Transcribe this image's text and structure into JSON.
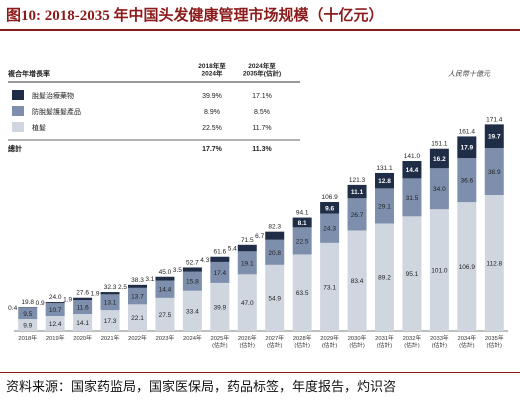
{
  "figure": {
    "title": "图10:   2018-2035 年中国头发健康管理市场规模（十亿元）",
    "source": "资料来源：国家药监局，国家医保局，药品标签，年度报告，灼识咨"
  },
  "colors": {
    "hair_loss_drug": "#1f2d46",
    "anti_hair_loss": "#7d8fac",
    "hair_transplant": "#cfd6e0",
    "title_red": "#8b1a1a"
  },
  "chart_data": {
    "type": "bar",
    "stacked": true,
    "unit_label": "人民幣十億元",
    "categories": [
      "2018年",
      "2019年",
      "2020年",
      "2021年",
      "2022年",
      "2023年",
      "2024年",
      "2025年\n(估計)",
      "2026年\n(估計)",
      "2027年\n(估計)",
      "2028年\n(估計)",
      "2029年\n(估計)",
      "2030年\n(估計)",
      "2031年\n(估計)",
      "2032年\n(估計)",
      "2033年\n(估計)",
      "2034年\n(估計)",
      "2035年\n(估計)"
    ],
    "series": [
      {
        "name": "植髮",
        "color_key": "hair_transplant",
        "values": [
          9.9,
          12.4,
          14.1,
          17.3,
          22.1,
          27.5,
          33.4,
          39.9,
          47.0,
          54.9,
          63.5,
          73.1,
          83.4,
          89.2,
          95.1,
          101.0,
          106.9,
          112.8
        ]
      },
      {
        "name": "防脫髮護髮產品",
        "color_key": "anti_hair_loss",
        "values": [
          9.5,
          10.7,
          11.6,
          13.1,
          13.7,
          14.4,
          15.8,
          17.4,
          19.1,
          20.8,
          22.5,
          24.3,
          26.7,
          29.1,
          31.5,
          34.0,
          36.6,
          38.9
        ]
      },
      {
        "name": "脫髮治療藥物",
        "color_key": "hair_loss_drug",
        "values": [
          0.4,
          0.9,
          1.9,
          1.9,
          2.5,
          3.1,
          3.5,
          4.3,
          5.4,
          6.7,
          8.1,
          9.6,
          11.1,
          12.8,
          14.4,
          16.2,
          17.9,
          19.7
        ]
      }
    ],
    "totals": [
      19.8,
      24.0,
      27.6,
      32.3,
      38.3,
      45.0,
      52.7,
      61.6,
      71.5,
      82.3,
      94.1,
      106.9,
      121.3,
      131.1,
      141.0,
      151.1,
      161.4,
      171.4
    ],
    "ylim": [
      0,
      180
    ],
    "grid": false,
    "legend_table": {
      "header": "複合年增長率",
      "col1": "2018年至\n2024年",
      "col2": "2024年至\n2035年(估計)",
      "rows": [
        {
          "name": "脫髮治療藥物",
          "color_key": "hair_loss_drug",
          "c1": "39.9%",
          "c2": "17.1%"
        },
        {
          "name": "防脫髮護髮產品",
          "color_key": "anti_hair_loss",
          "c1": "8.9%",
          "c2": "8.5%"
        },
        {
          "name": "植髮",
          "color_key": "hair_transplant",
          "c1": "22.5%",
          "c2": "11.7%"
        }
      ],
      "total_label": "總計",
      "total_c1": "17.7%",
      "total_c2": "11.3%"
    }
  }
}
